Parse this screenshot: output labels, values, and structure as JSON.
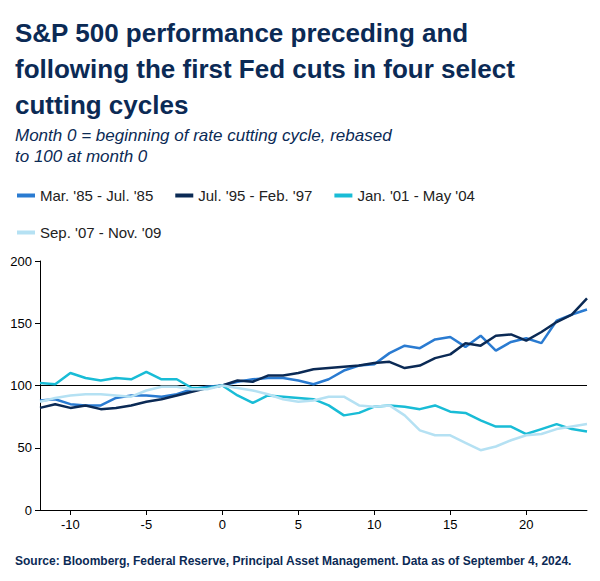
{
  "chart_data": {
    "type": "line",
    "title": "S&P 500 performance preceding and following the first Fed cuts in four select cutting cycles",
    "subtitle": "Month 0 = beginning of rate cutting cycle, rebased to 100 at month 0",
    "source": "Source: Bloomberg, Federal Reserve, Principal Asset Management. Data as of September 4, 2024.",
    "x": [
      -12,
      -11,
      -10,
      -9,
      -8,
      -7,
      -6,
      -5,
      -4,
      -3,
      -2,
      -1,
      0,
      1,
      2,
      3,
      4,
      5,
      6,
      7,
      8,
      9,
      10,
      11,
      12,
      13,
      14,
      15,
      16,
      17,
      18,
      19,
      20,
      21,
      22,
      23,
      24
    ],
    "series": [
      {
        "name": "Mar. '85 - Jul. '85",
        "color": "#2a7bd1",
        "values": [
          88,
          89,
          85,
          84,
          84,
          90,
          92,
          92,
          91,
          93,
          97,
          99,
          100,
          103,
          105,
          106,
          106,
          104,
          101,
          105,
          112,
          116,
          117,
          126,
          132,
          130,
          137,
          139,
          131,
          140,
          128,
          135,
          138,
          134,
          152,
          157,
          161
        ]
      },
      {
        "name": "Jul. '95 - Feb. '97",
        "color": "#0b2a55",
        "values": [
          82,
          85,
          82,
          84,
          81,
          82,
          84,
          87,
          89,
          92,
          95,
          98,
          100,
          104,
          103,
          108,
          108,
          110,
          113,
          114,
          115,
          116,
          118,
          119,
          114,
          116,
          122,
          125,
          134,
          132,
          140,
          141,
          136,
          143,
          151,
          157,
          170
        ]
      },
      {
        "name": "Jan. '01 - May '04",
        "color": "#19bcd6",
        "values": [
          102,
          101,
          110,
          106,
          104,
          106,
          105,
          111,
          105,
          105,
          98,
          98,
          100,
          92,
          86,
          92,
          91,
          90,
          89,
          84,
          76,
          78,
          83,
          84,
          83,
          81,
          84,
          79,
          78,
          72,
          67,
          67,
          61,
          65,
          69,
          65,
          63
        ]
      },
      {
        "name": "Sep. '07 - Nov. '09",
        "color": "#b5e1f3",
        "values": [
          87,
          90,
          92,
          93,
          93,
          92,
          91,
          96,
          99,
          99,
          97,
          97,
          100,
          98,
          96,
          93,
          89,
          87,
          88,
          91,
          91,
          84,
          83,
          84,
          76,
          64,
          60,
          60,
          54,
          48,
          51,
          56,
          60,
          61,
          65,
          67,
          69
        ]
      }
    ],
    "xlim": [
      -12,
      24
    ],
    "xticks": [
      -10,
      -5,
      0,
      5,
      10,
      15,
      20
    ],
    "ylim": [
      0,
      200
    ],
    "yticks": [
      0,
      50,
      100,
      150,
      200
    ],
    "reference_line": 100,
    "grid": false,
    "legend": "top"
  }
}
